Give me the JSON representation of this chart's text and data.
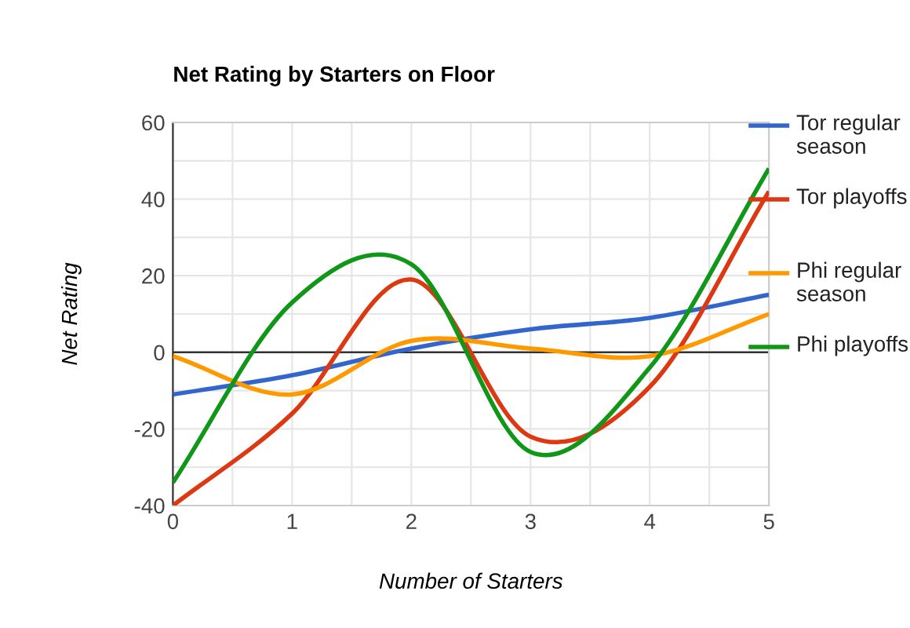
{
  "chart_data": {
    "type": "line",
    "title": "Net Rating by Starters on Floor",
    "xlabel": "Number of Starters",
    "ylabel": "Net Rating",
    "x": [
      0,
      1,
      2,
      3,
      4,
      5
    ],
    "series": [
      {
        "name": "Tor regular season",
        "color": "#3366cc",
        "values": [
          -11,
          -6,
          1,
          6,
          9,
          15
        ]
      },
      {
        "name": "Tor playoffs",
        "color": "#dc3912",
        "values": [
          -40,
          -16,
          19,
          -22,
          -9,
          42
        ]
      },
      {
        "name": "Phi regular season",
        "color": "#ff9900",
        "values": [
          -1,
          -11,
          3,
          1,
          -1,
          10
        ]
      },
      {
        "name": "Phi playoffs",
        "color": "#109618",
        "values": [
          -34,
          13,
          23,
          -26,
          -4,
          48
        ]
      }
    ],
    "xlim": [
      0,
      5
    ],
    "ylim": [
      -40,
      60
    ],
    "xticks": [
      0,
      {
        "value": 0.5,
        "label": null
      },
      1,
      {
        "value": 1.5,
        "label": null
      },
      2,
      {
        "value": 2.5,
        "label": null
      },
      3,
      {
        "value": 3.5,
        "label": null
      },
      4,
      {
        "value": 4.5,
        "label": null
      },
      5
    ],
    "yticks": [
      -40,
      {
        "value": -30,
        "label": null
      },
      -20,
      {
        "value": -10,
        "label": null
      },
      0,
      {
        "value": 10,
        "label": null
      },
      20,
      {
        "value": 30,
        "label": null
      },
      40,
      {
        "value": 50,
        "label": null
      },
      60
    ],
    "ref_lines": [
      {
        "axis": "y",
        "value": 0,
        "color": "#333333"
      }
    ],
    "grid": true,
    "legend": "right",
    "marker": "none",
    "line_style": "solid"
  }
}
